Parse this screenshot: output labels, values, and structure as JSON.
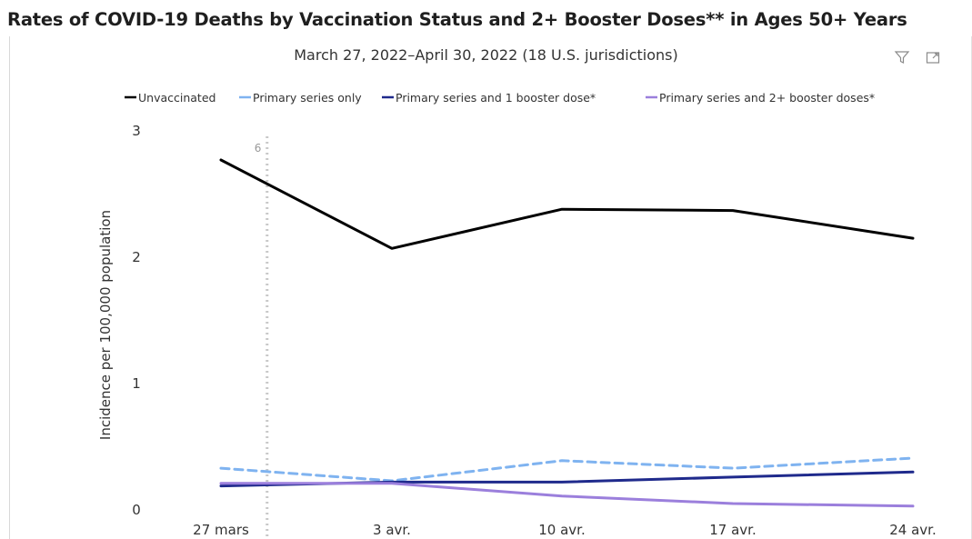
{
  "title": "Rates of COVID-19 Deaths by Vaccination Status and 2+ Booster Doses** in Ages 50+ Years",
  "subtitle": "March 27, 2022–April 30, 2022 (18 U.S. jurisdictions)",
  "toolbar": {
    "filter_icon": "filter-icon",
    "focus_icon": "focus-mode-icon"
  },
  "chart_data": {
    "type": "line",
    "title": "Rates of COVID-19 Deaths by Vaccination Status and 2+ Booster Doses** in Ages 50+ Years",
    "subtitle": "March 27, 2022–April 30, 2022 (18 U.S. jurisdictions)",
    "ylabel": "Incidence per 100,000 population",
    "xlabel": "",
    "categories": [
      "27 mars",
      "3 avr.",
      "10 avr.",
      "17 avr.",
      "24 avr."
    ],
    "ylim": [
      0,
      3
    ],
    "yticks": [
      "0",
      "1",
      "2",
      "3"
    ],
    "grid": false,
    "legend_position": "top",
    "series": [
      {
        "name": "Unvaccinated",
        "color": "#000000",
        "dash": "solid",
        "values": [
          2.77,
          2.07,
          2.38,
          2.37,
          2.15
        ]
      },
      {
        "name": "Primary series only",
        "color": "#7fb3f0",
        "dash": "dashed",
        "values": [
          0.33,
          0.23,
          0.39,
          0.33,
          0.41
        ]
      },
      {
        "name": "Primary series and  1 booster dose*",
        "color": "#1f2a8c",
        "dash": "solid",
        "values": [
          0.19,
          0.22,
          0.22,
          0.26,
          0.3
        ]
      },
      {
        "name": "Primary series and 2+ booster doses*",
        "color": "#9b7fdc",
        "dash": "solid",
        "values": [
          0.21,
          0.21,
          0.11,
          0.05,
          0.03
        ]
      }
    ],
    "annotations": [
      {
        "text": "6",
        "x_between": [
          "27 mars",
          "3 avr."
        ],
        "note": "dotted vertical reference line"
      }
    ]
  }
}
